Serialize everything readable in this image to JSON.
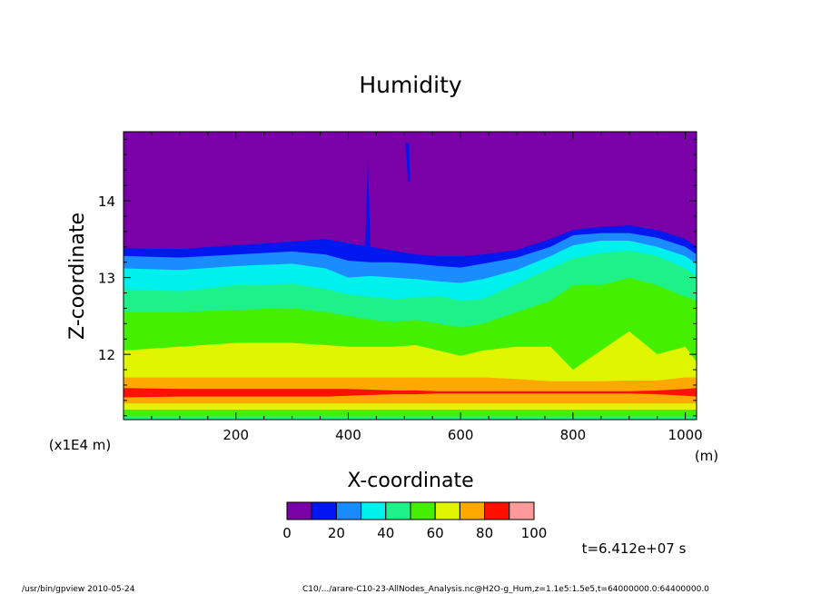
{
  "chart_data": {
    "type": "heatmap",
    "title": "Humidity",
    "xlabel": "X-coordinate",
    "ylabel": "Z-coordinate",
    "x_unit": "(m)",
    "y_scale_note": "(x1E4 m)",
    "xlim": [
      0,
      1020
    ],
    "ylim": [
      11.15,
      14.9
    ],
    "x_ticks": [
      "200",
      "400",
      "600",
      "800",
      "1000"
    ],
    "x_tick_values": [
      200,
      400,
      600,
      800,
      1000
    ],
    "y_ticks": [
      "12",
      "13",
      "14"
    ],
    "y_tick_values": [
      12,
      13,
      14
    ],
    "time_label": "t=6.412e+07 s",
    "colorbar": {
      "ticks": [
        "0",
        "20",
        "40",
        "60",
        "80",
        "100"
      ],
      "levels": [
        0,
        10,
        20,
        30,
        40,
        50,
        60,
        70,
        80,
        90,
        100
      ],
      "colors": [
        "#7a00a8",
        "#0018f0",
        "#1a8cff",
        "#00f0ee",
        "#1ef08a",
        "#44f000",
        "#e0f500",
        "#ffa800",
        "#ff1000",
        "#ff9a9a"
      ]
    },
    "contour_profile": {
      "x": [
        0,
        100,
        200,
        300,
        360,
        400,
        440,
        480,
        520,
        560,
        600,
        640,
        700,
        760,
        800,
        850,
        900,
        950,
        1000,
        1020
      ],
      "boundaries": [
        {
          "level": 10,
          "z": [
            13.38,
            13.37,
            13.42,
            13.47,
            13.5,
            13.45,
            13.4,
            13.35,
            13.3,
            13.28,
            13.28,
            13.3,
            13.36,
            13.5,
            13.62,
            13.66,
            13.68,
            13.62,
            13.5,
            13.4
          ]
        },
        {
          "level": 20,
          "z": [
            13.28,
            13.26,
            13.3,
            13.34,
            13.3,
            13.22,
            13.2,
            13.2,
            13.18,
            13.15,
            13.13,
            13.18,
            13.26,
            13.4,
            13.55,
            13.58,
            13.58,
            13.52,
            13.4,
            13.3
          ]
        },
        {
          "level": 30,
          "z": [
            13.12,
            13.1,
            13.15,
            13.18,
            13.12,
            13.0,
            13.02,
            13.0,
            12.98,
            12.95,
            12.93,
            12.98,
            13.1,
            13.28,
            13.42,
            13.48,
            13.48,
            13.4,
            13.28,
            13.18
          ]
        },
        {
          "level": 40,
          "z": [
            12.85,
            12.82,
            12.9,
            12.92,
            12.85,
            12.78,
            12.75,
            12.72,
            12.74,
            12.76,
            12.7,
            12.72,
            12.92,
            13.12,
            13.25,
            13.32,
            13.35,
            13.28,
            13.12,
            13.02
          ]
        },
        {
          "level": 50,
          "z": [
            12.55,
            12.55,
            12.58,
            12.6,
            12.55,
            12.5,
            12.45,
            12.42,
            12.45,
            12.4,
            12.35,
            12.4,
            12.55,
            12.7,
            12.9,
            12.9,
            13.0,
            12.9,
            12.75,
            12.7
          ]
        },
        {
          "level": 60,
          "z": [
            12.05,
            12.1,
            12.15,
            12.15,
            12.12,
            12.1,
            12.1,
            12.1,
            12.12,
            12.05,
            11.98,
            12.05,
            12.1,
            12.1,
            11.8,
            12.05,
            12.3,
            12.0,
            12.1,
            11.9
          ]
        },
        {
          "level": 70,
          "z": [
            11.7,
            11.7,
            11.7,
            11.7,
            11.7,
            11.7,
            11.7,
            11.7,
            11.7,
            11.7,
            11.7,
            11.7,
            11.68,
            11.65,
            11.65,
            11.65,
            11.66,
            11.66,
            11.7,
            11.7
          ]
        },
        {
          "level": 80,
          "z": [
            11.56,
            11.55,
            11.55,
            11.55,
            11.55,
            11.55,
            11.54,
            11.53,
            11.53,
            11.52,
            11.52,
            11.52,
            11.52,
            11.52,
            11.52,
            11.52,
            11.52,
            11.53,
            11.55,
            11.56
          ]
        },
        {
          "level": 70,
          "z": [
            11.44,
            11.45,
            11.45,
            11.45,
            11.45,
            11.46,
            11.47,
            11.48,
            11.48,
            11.49,
            11.49,
            11.49,
            11.49,
            11.49,
            11.49,
            11.49,
            11.49,
            11.48,
            11.46,
            11.45
          ]
        },
        {
          "level": 60,
          "z": [
            11.36,
            11.36,
            11.36,
            11.36,
            11.36,
            11.36,
            11.36,
            11.36,
            11.36,
            11.36,
            11.36,
            11.36,
            11.36,
            11.36,
            11.36,
            11.36,
            11.36,
            11.36,
            11.36,
            11.36
          ]
        },
        {
          "level": 50,
          "z": [
            11.28,
            11.28,
            11.28,
            11.28,
            11.28,
            11.28,
            11.28,
            11.28,
            11.28,
            11.28,
            11.28,
            11.28,
            11.28,
            11.28,
            11.28,
            11.28,
            11.28,
            11.28,
            11.28,
            11.28
          ]
        },
        {
          "level": 40,
          "z": [
            11.19,
            11.19,
            11.19,
            11.19,
            11.19,
            11.19,
            11.19,
            11.19,
            11.19,
            11.19,
            11.19,
            11.19,
            11.19,
            11.19,
            11.19,
            11.19,
            11.19,
            11.19,
            11.19,
            11.19
          ]
        }
      ]
    },
    "features": [
      {
        "type": "spike",
        "x": 435,
        "z_top": 14.55,
        "level": 10
      },
      {
        "type": "streak",
        "x": 505,
        "z_top": 14.75,
        "z_bottom": 14.25,
        "level": 10
      }
    ]
  },
  "footer": {
    "left": "/usr/bin/gpview   2010-05-24",
    "right": "C10/.../arare-C10-23-AllNodes_Analysis.nc@H2O-g_Hum,z=1.1e5:1.5e5,t=64000000.0:64400000.0"
  }
}
